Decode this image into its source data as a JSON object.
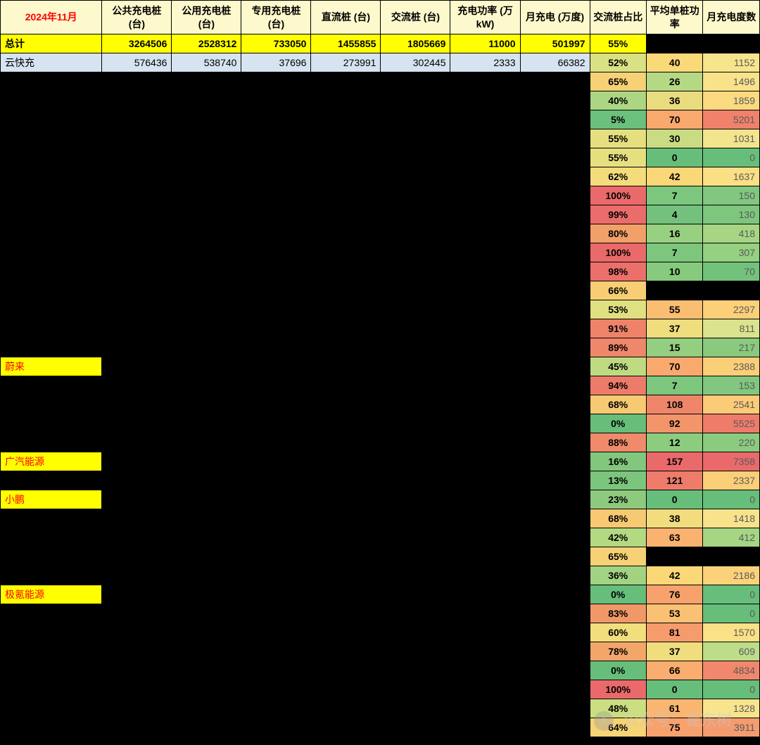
{
  "header": {
    "title": "2024年11月",
    "cols": [
      "公共充电桩 (台)",
      "公用充电桩 (台)",
      "专用充电桩 (台)",
      "直流桩 (台)",
      "交流桩 (台)",
      "充电功率 (万kW)",
      "月充电 (万度)",
      "交流桩占比",
      "平均单桩功率",
      "月充电度数"
    ]
  },
  "total": {
    "label": "总计",
    "vals": [
      "3264506",
      "2528312",
      "733050",
      "1455855",
      "1805669",
      "11000",
      "501997",
      "55%",
      "",
      ""
    ]
  },
  "row_blue": {
    "label": "云快充",
    "vals": [
      "576436",
      "538740",
      "37696",
      "273991",
      "302445",
      "2333",
      "66382"
    ],
    "pct": "52%",
    "pct_bg": "#d9e183",
    "avg": "40",
    "avg_bg": "#f9d978",
    "kwh": "1152",
    "kwh_bg": "#f7e58c"
  },
  "rows": [
    {
      "name": "",
      "highlight": false,
      "pct": "65%",
      "pct_bg": "#f6d176",
      "avg": "26",
      "avg_bg": "#b4d884",
      "kwh": "1496",
      "kwh_bg": "#f9e28a"
    },
    {
      "name": "",
      "highlight": false,
      "pct": "40%",
      "pct_bg": "#acd683",
      "avg": "36",
      "avg_bg": "#e9dc7f",
      "kwh": "1859",
      "kwh_bg": "#fbda80"
    },
    {
      "name": "",
      "highlight": false,
      "pct": "5%",
      "pct_bg": "#6ac07c",
      "avg": "70",
      "avg_bg": "#f9a86e",
      "kwh": "5201",
      "kwh_bg": "#f0816b"
    },
    {
      "name": "",
      "highlight": false,
      "pct": "55%",
      "pct_bg": "#e6df7f",
      "avg": "30",
      "avg_bg": "#c9dc83",
      "kwh": "1031",
      "kwh_bg": "#f3e58e"
    },
    {
      "name": "",
      "highlight": false,
      "pct": "55%",
      "pct_bg": "#e6df7f",
      "avg": "0",
      "avg_bg": "#67be7b",
      "kwh": "0",
      "kwh_bg": "#67be7b"
    },
    {
      "name": "",
      "highlight": false,
      "pct": "62%",
      "pct_bg": "#f4db7b",
      "avg": "42",
      "avg_bg": "#fad777",
      "kwh": "1637",
      "kwh_bg": "#fadf85"
    },
    {
      "name": "",
      "highlight": false,
      "pct": "100%",
      "pct_bg": "#ea6a6b",
      "avg": "7",
      "avg_bg": "#7dc67d",
      "kwh": "150",
      "kwh_bg": "#81c77f"
    },
    {
      "name": "",
      "highlight": false,
      "pct": "99%",
      "pct_bg": "#eb6d6b",
      "avg": "4",
      "avg_bg": "#73c17c",
      "kwh": "130",
      "kwh_bg": "#7ec67e"
    },
    {
      "name": "",
      "highlight": false,
      "pct": "80%",
      "pct_bg": "#f2a069",
      "avg": "16",
      "avg_bg": "#98d081",
      "kwh": "418",
      "kwh_bg": "#a6d683"
    },
    {
      "name": "",
      "highlight": false,
      "pct": "100%",
      "pct_bg": "#ea6a6b",
      "avg": "7",
      "avg_bg": "#7dc67d",
      "kwh": "307",
      "kwh_bg": "#96d081"
    },
    {
      "name": "",
      "highlight": false,
      "pct": "98%",
      "pct_bg": "#eb706b",
      "avg": "10",
      "avg_bg": "#87ca7e",
      "kwh": "70",
      "kwh_bg": "#73c27c"
    },
    {
      "name": "",
      "highlight": false,
      "pct": "66%",
      "pct_bg": "#f7ce74",
      "avg": "",
      "avg_bg": "#000000",
      "kwh": "",
      "kwh_bg": "#000000"
    },
    {
      "name": "",
      "highlight": false,
      "pct": "53%",
      "pct_bg": "#dfe080",
      "avg": "55",
      "avg_bg": "#fabe73",
      "kwh": "2297",
      "kwh_bg": "#fbd079"
    },
    {
      "name": "",
      "highlight": false,
      "pct": "91%",
      "pct_bg": "#ee836a",
      "avg": "37",
      "avg_bg": "#efdd7e",
      "kwh": "811",
      "kwh_bg": "#dae38d"
    },
    {
      "name": "",
      "highlight": false,
      "pct": "89%",
      "pct_bg": "#ef886a",
      "avg": "15",
      "avg_bg": "#94ce80",
      "kwh": "217",
      "kwh_bg": "#8aca7f"
    },
    {
      "name": "蔚来",
      "highlight": true,
      "pct": "45%",
      "pct_bg": "#bfdb82",
      "avg": "70",
      "avg_bg": "#f9a86e",
      "kwh": "2388",
      "kwh_bg": "#fbce78"
    },
    {
      "name": "",
      "highlight": false,
      "pct": "94%",
      "pct_bg": "#ed7b6a",
      "avg": "7",
      "avg_bg": "#7dc67d",
      "kwh": "153",
      "kwh_bg": "#81c77f"
    },
    {
      "name": "",
      "highlight": false,
      "pct": "68%",
      "pct_bg": "#f7c972",
      "avg": "108",
      "avg_bg": "#ef866a",
      "kwh": "2541",
      "kwh_bg": "#fbcb77"
    },
    {
      "name": "",
      "highlight": false,
      "pct": "0%",
      "pct_bg": "#67be7b",
      "avg": "92",
      "avg_bg": "#f2956b",
      "kwh": "5525",
      "kwh_bg": "#ef7c6a"
    },
    {
      "name": "",
      "highlight": false,
      "pct": "88%",
      "pct_bg": "#ef8b6a",
      "avg": "12",
      "avg_bg": "#8ccc7f",
      "kwh": "220",
      "kwh_bg": "#8bcb7f"
    },
    {
      "name": "广汽能源",
      "highlight": true,
      "pct": "16%",
      "pct_bg": "#82c77d",
      "avg": "157",
      "avg_bg": "#ea6a6b",
      "kwh": "7358",
      "kwh_bg": "#ea6a6b"
    },
    {
      "name": "",
      "highlight": false,
      "pct": "13%",
      "pct_bg": "#7bc57c",
      "avg": "121",
      "avg_bg": "#ed7c6a",
      "kwh": "2337",
      "kwh_bg": "#fbcf78"
    },
    {
      "name": "小鹏",
      "highlight": true,
      "pct": "23%",
      "pct_bg": "#8eca7e",
      "avg": "0",
      "avg_bg": "#67be7b",
      "kwh": "0",
      "kwh_bg": "#67be7b"
    },
    {
      "name": "",
      "highlight": false,
      "pct": "68%",
      "pct_bg": "#f7c972",
      "avg": "38",
      "avg_bg": "#f3dc7d",
      "kwh": "1418",
      "kwh_bg": "#f8e38b"
    },
    {
      "name": "",
      "highlight": false,
      "pct": "42%",
      "pct_bg": "#b3d982",
      "avg": "63",
      "avg_bg": "#fab270",
      "kwh": "412",
      "kwh_bg": "#a5d683"
    },
    {
      "name": "",
      "highlight": false,
      "pct": "65%",
      "pct_bg": "#f6d176",
      "avg": "",
      "avg_bg": "#000000",
      "kwh": "",
      "kwh_bg": "#000000"
    },
    {
      "name": "",
      "highlight": false,
      "pct": "36%",
      "pct_bg": "#a1d382",
      "avg": "42",
      "avg_bg": "#fad777",
      "kwh": "2186",
      "kwh_bg": "#fbd27a"
    },
    {
      "name": "极氪能源",
      "highlight": true,
      "pct": "0%",
      "pct_bg": "#67be7b",
      "avg": "76",
      "avg_bg": "#f7a16d",
      "kwh": "0",
      "kwh_bg": "#67be7b"
    },
    {
      "name": "",
      "highlight": false,
      "pct": "83%",
      "pct_bg": "#f19869",
      "avg": "53",
      "avg_bg": "#fac174",
      "kwh": "0",
      "kwh_bg": "#67be7b"
    },
    {
      "name": "",
      "highlight": false,
      "pct": "60%",
      "pct_bg": "#f1de7d",
      "avg": "81",
      "avg_bg": "#f59b6c",
      "kwh": "1570",
      "kwh_bg": "#fae086"
    },
    {
      "name": "",
      "highlight": false,
      "pct": "78%",
      "pct_bg": "#f3a66a",
      "avg": "37",
      "avg_bg": "#efdd7e",
      "kwh": "609",
      "kwh_bg": "#bddd8a"
    },
    {
      "name": "",
      "highlight": false,
      "pct": "0%",
      "pct_bg": "#67be7b",
      "avg": "66",
      "avg_bg": "#f9ad6f",
      "kwh": "4834",
      "kwh_bg": "#f1876c"
    },
    {
      "name": "",
      "highlight": false,
      "pct": "100%",
      "pct_bg": "#ea6a6b",
      "avg": "0",
      "avg_bg": "#67be7b",
      "kwh": "0",
      "kwh_bg": "#67be7b"
    },
    {
      "name": "",
      "highlight": false,
      "pct": "48%",
      "pct_bg": "#cbde81",
      "avg": "61",
      "avg_bg": "#fab571",
      "kwh": "1328",
      "kwh_bg": "#f7e48d"
    },
    {
      "name": "",
      "highlight": false,
      "pct": "64%",
      "pct_bg": "#f6d377",
      "avg": "75",
      "avg_bg": "#f7a26d",
      "kwh": "3911",
      "kwh_bg": "#f49b6f"
    }
  ],
  "watermark": "公众号：崔东树"
}
